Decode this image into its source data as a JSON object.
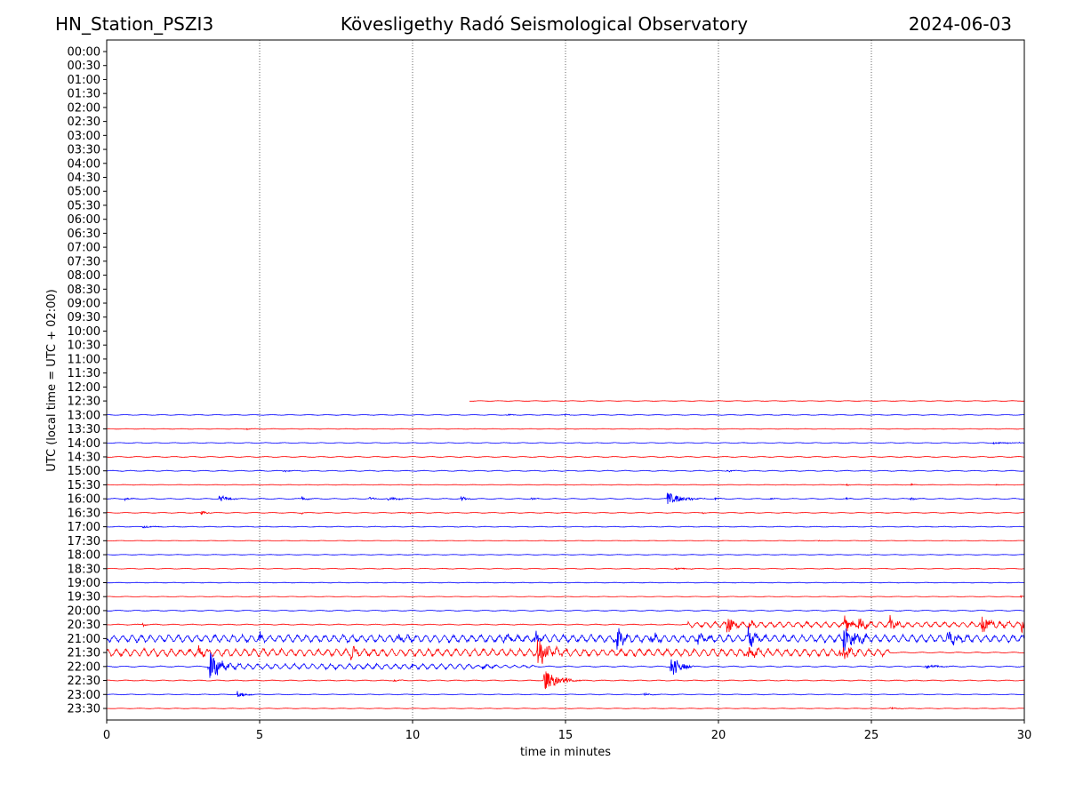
{
  "header": {
    "station": "HN_Station_PSZI3",
    "observatory": "Kövesligethy Radó Seismological Observatory",
    "date": "2024-06-03"
  },
  "chart_data": {
    "type": "line",
    "title": "Kövesligethy Radó Seismological Observatory",
    "xlabel": "time in minutes",
    "ylabel": "UTC (local time = UTC + 02:00)",
    "xlim": [
      0,
      30
    ],
    "xticks": [
      0,
      5,
      10,
      15,
      20,
      25,
      30
    ],
    "grid": "vertical dotted at 5-minute ticks",
    "colors": {
      "hour": "#0000ff",
      "half_hour": "#ff0000"
    },
    "row_labels": [
      "00:00",
      "00:30",
      "01:00",
      "01:30",
      "02:00",
      "02:30",
      "03:00",
      "03:30",
      "04:00",
      "04:30",
      "05:00",
      "05:30",
      "06:00",
      "06:30",
      "07:00",
      "07:30",
      "08:00",
      "08:30",
      "09:00",
      "09:30",
      "10:00",
      "10:30",
      "11:00",
      "11:30",
      "12:00",
      "12:30",
      "13:00",
      "13:30",
      "14:00",
      "14:30",
      "15:00",
      "15:30",
      "16:00",
      "16:30",
      "17:00",
      "17:30",
      "18:00",
      "18:30",
      "19:00",
      "19:30",
      "20:00",
      "20:30",
      "21:00",
      "21:30",
      "22:00",
      "22:30",
      "23:00",
      "23:30"
    ],
    "traces": [
      {
        "row": "12:30",
        "start": 11.85,
        "noise": [
          [
            11.85,
            30,
            0.3,
            0.3
          ]
        ],
        "events": []
      },
      {
        "row": "13:00",
        "start": 0,
        "noise": [
          [
            0,
            30,
            0.4,
            0.3
          ]
        ],
        "events": [
          [
            13.1,
            1,
            0.2
          ],
          [
            15,
            0.8,
            0.2
          ]
        ]
      },
      {
        "row": "13:30",
        "start": 0,
        "noise": [
          [
            0,
            30,
            0.3,
            0.3
          ]
        ],
        "events": [
          [
            4.6,
            0.8,
            0.2
          ]
        ]
      },
      {
        "row": "14:00",
        "start": 0,
        "noise": [
          [
            0,
            30,
            0.4,
            0.3
          ]
        ],
        "events": [
          [
            29,
            1.2,
            1
          ]
        ]
      },
      {
        "row": "14:30",
        "start": 0,
        "noise": [
          [
            0,
            30,
            0.5,
            0.3
          ]
        ],
        "events": []
      },
      {
        "row": "15:00",
        "start": 0,
        "noise": [
          [
            0,
            30,
            0.5,
            0.3
          ]
        ],
        "events": [
          [
            5.8,
            1,
            0.4
          ],
          [
            20.3,
            1,
            0.4
          ]
        ]
      },
      {
        "row": "15:30",
        "start": 0,
        "noise": [
          [
            0,
            30,
            0.3,
            0.3
          ]
        ],
        "events": [
          [
            24.2,
            1,
            0.1
          ],
          [
            26.3,
            1.2,
            0.1
          ],
          [
            29.1,
            1,
            0.2
          ]
        ]
      },
      {
        "row": "16:00",
        "start": 0,
        "noise": [
          [
            0,
            30,
            0.5,
            0.3
          ]
        ],
        "events": [
          [
            0.6,
            1.5,
            0.3
          ],
          [
            3.7,
            4,
            0.4
          ],
          [
            6.4,
            2,
            0.2
          ],
          [
            8.6,
            1.5,
            0.3
          ],
          [
            9.2,
            2.5,
            0.4
          ],
          [
            11.6,
            3,
            0.2
          ],
          [
            13.9,
            1.5,
            0.2
          ],
          [
            18.35,
            8,
            0.6
          ],
          [
            19.9,
            1.5,
            0.2
          ],
          [
            21.7,
            1,
            0.2
          ],
          [
            24.2,
            1,
            0.2
          ],
          [
            26.3,
            2,
            0.2
          ]
        ]
      },
      {
        "row": "16:30",
        "start": 0,
        "noise": [
          [
            0,
            30,
            0.4,
            0.3
          ]
        ],
        "events": [
          [
            3.1,
            3,
            0.2
          ],
          [
            6.4,
            1,
            0.1
          ],
          [
            9.9,
            1,
            0.1
          ],
          [
            19.5,
            1,
            0.1
          ]
        ]
      },
      {
        "row": "17:00",
        "start": 0,
        "noise": [
          [
            0,
            30,
            0.4,
            0.3
          ]
        ],
        "events": [
          [
            1.2,
            1.2,
            0.6
          ]
        ]
      },
      {
        "row": "17:30",
        "start": 0,
        "noise": [
          [
            0,
            30,
            0.3,
            0.3
          ]
        ],
        "events": [
          [
            23.3,
            1,
            0.1
          ]
        ]
      },
      {
        "row": "18:00",
        "start": 0,
        "noise": [
          [
            0,
            30,
            0.3,
            0.3
          ]
        ],
        "events": []
      },
      {
        "row": "18:30",
        "start": 0,
        "noise": [
          [
            0,
            30,
            0.4,
            0.3
          ]
        ],
        "events": [
          [
            18.6,
            1,
            0.5
          ]
        ]
      },
      {
        "row": "19:00",
        "start": 0,
        "noise": [
          [
            0,
            30,
            0.3,
            0.3
          ]
        ],
        "events": []
      },
      {
        "row": "19:30",
        "start": 0,
        "noise": [
          [
            0,
            30,
            0.3,
            0.3
          ]
        ],
        "events": [
          [
            29.9,
            1.2,
            0.1
          ]
        ]
      },
      {
        "row": "20:00",
        "start": 0,
        "noise": [
          [
            0,
            30,
            0.5,
            0.3
          ]
        ],
        "events": []
      },
      {
        "row": "20:30",
        "start": 0,
        "noise": [
          [
            0,
            19,
            0.5,
            0.3
          ],
          [
            19,
            30,
            3,
            0.15
          ]
        ],
        "events": [
          [
            1.2,
            2,
            0.1
          ],
          [
            20.3,
            10,
            0.3
          ],
          [
            21,
            6,
            0.2
          ],
          [
            24.1,
            9,
            0.4
          ],
          [
            24.6,
            8,
            0.3
          ],
          [
            25.6,
            9,
            0.3
          ],
          [
            28.6,
            12,
            0.5
          ],
          [
            29.9,
            7,
            0.2
          ]
        ]
      },
      {
        "row": "21:00",
        "start": 0,
        "noise": [
          [
            0,
            30,
            4,
            0.15
          ]
        ],
        "events": [
          [
            5,
            6,
            0.1
          ],
          [
            9.5,
            4,
            0.4
          ],
          [
            13,
            5,
            0.4
          ],
          [
            14,
            7,
            0.3
          ],
          [
            16.7,
            14,
            0.3
          ],
          [
            17.8,
            6,
            0.4
          ],
          [
            19.3,
            6,
            0.4
          ],
          [
            21,
            10,
            0.4
          ],
          [
            24.1,
            14,
            0.6
          ],
          [
            27.5,
            8,
            0.5
          ]
        ]
      },
      {
        "row": "21:30",
        "start": 0,
        "noise": [
          [
            0,
            25.6,
            4,
            0.15
          ],
          [
            25.6,
            30,
            0.5,
            0.3
          ]
        ],
        "events": [
          [
            3,
            5,
            0.3
          ],
          [
            8,
            6,
            0.3
          ],
          [
            14.1,
            16,
            0.5
          ],
          [
            21,
            6,
            0.5
          ],
          [
            24,
            8,
            0.4
          ]
        ]
      },
      {
        "row": "22:00",
        "start": 0,
        "noise": [
          [
            0,
            3.3,
            0.6,
            0.3
          ],
          [
            3.3,
            12,
            3,
            0.15
          ],
          [
            12,
            14,
            1.5,
            0.15
          ],
          [
            14,
            30,
            0.6,
            0.3
          ]
        ],
        "events": [
          [
            3.4,
            14,
            0.5
          ],
          [
            10,
            2,
            0.1
          ],
          [
            12.3,
            2,
            0.5
          ],
          [
            18.45,
            14,
            0.4
          ],
          [
            26.8,
            2,
            0.6
          ]
        ]
      },
      {
        "row": "22:30",
        "start": 0,
        "noise": [
          [
            0,
            30,
            0.5,
            0.3
          ]
        ],
        "events": [
          [
            14.3,
            12,
            0.6
          ],
          [
            15,
            2,
            0.2
          ],
          [
            9.4,
            1,
            0.3
          ]
        ]
      },
      {
        "row": "23:00",
        "start": 0,
        "noise": [
          [
            0,
            30,
            0.4,
            0.3
          ]
        ],
        "events": [
          [
            4.3,
            4,
            0.3
          ],
          [
            17.6,
            1.5,
            0.3
          ]
        ]
      },
      {
        "row": "23:30",
        "start": 0,
        "noise": [
          [
            0,
            30,
            0.3,
            0.3
          ]
        ],
        "events": [
          [
            25.6,
            1,
            0.5
          ]
        ]
      }
    ]
  }
}
